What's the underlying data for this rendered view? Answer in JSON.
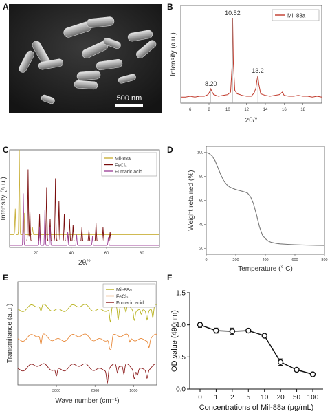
{
  "panels": {
    "A": {
      "letter": "A",
      "scale_bar": "500 nm"
    },
    "B": {
      "letter": "B"
    },
    "C": {
      "letter": "C"
    },
    "D": {
      "letter": "D"
    },
    "E": {
      "letter": "E"
    },
    "F": {
      "letter": "F"
    }
  },
  "chart_data": [
    {
      "panel": "B",
      "type": "line",
      "xlabel": "2θ/°",
      "ylabel": "Intensity (a.u.)",
      "x_ticks": [
        "6",
        "8",
        "10",
        "12",
        "14",
        "16",
        "18"
      ],
      "xlim": [
        5,
        20
      ],
      "legend": [
        "Mil-88a"
      ],
      "legend_position": "top-right",
      "peak_labels": [
        {
          "x": 8.2,
          "label": "8.20"
        },
        {
          "x": 10.52,
          "label": "10.52"
        },
        {
          "x": 13.2,
          "label": "13.2"
        }
      ],
      "series": [
        {
          "name": "Mil-88a",
          "color": "#c0392b",
          "x": [
            5.0,
            5.5,
            6.0,
            6.5,
            7.0,
            7.5,
            7.9,
            8.1,
            8.2,
            8.3,
            8.5,
            9.0,
            9.5,
            10.0,
            10.3,
            10.45,
            10.52,
            10.6,
            10.75,
            11.0,
            11.3,
            11.5,
            12.0,
            12.5,
            12.8,
            13.0,
            13.1,
            13.2,
            13.3,
            13.5,
            14.0,
            14.5,
            15.0,
            15.5,
            15.8,
            16.0,
            16.5,
            17.0,
            17.5,
            18.0,
            18.5,
            19.0,
            19.5,
            20.0
          ],
          "y": [
            4,
            4,
            5,
            4,
            5,
            5,
            7,
            11,
            14,
            11,
            7,
            5,
            6,
            7,
            10,
            40,
            100,
            45,
            12,
            8,
            7,
            6,
            5,
            5,
            9,
            15,
            24,
            30,
            20,
            8,
            6,
            5,
            6,
            7,
            10,
            6,
            5,
            5,
            6,
            5,
            5,
            4,
            5,
            4
          ]
        }
      ]
    },
    {
      "panel": "C",
      "type": "line",
      "xlabel": "2θ/°",
      "ylabel": "Intensity (a.u.)",
      "x_ticks": [
        "20",
        "40",
        "60",
        "80"
      ],
      "xlim": [
        5,
        90
      ],
      "legend": [
        "Mil-88a",
        "FeCl₃",
        "Fumaric acid"
      ],
      "legend_position": "top-right",
      "series": [
        {
          "name": "Mil-88a",
          "color": "#c9b03a",
          "baseline": 12,
          "peaks": [
            [
              8.2,
              30
            ],
            [
              10.5,
              95
            ],
            [
              13.2,
              25
            ],
            [
              18,
              8
            ]
          ]
        },
        {
          "name": "FeCl₃",
          "color": "#7a0d0d",
          "baseline": 5,
          "peaks": [
            [
              15.5,
              80
            ],
            [
              16.5,
              35
            ],
            [
              22,
              30
            ],
            [
              26,
              60
            ],
            [
              28,
              25
            ],
            [
              31,
              70
            ],
            [
              33,
              45
            ],
            [
              36,
              30
            ],
            [
              39,
              25
            ],
            [
              41,
              18
            ],
            [
              46,
              15
            ],
            [
              50,
              12
            ],
            [
              54,
              20
            ],
            [
              58,
              15
            ],
            [
              62,
              10
            ]
          ]
        },
        {
          "name": "Fumaric acid",
          "color": "#a0479b",
          "baseline": 0,
          "peaks": [
            [
              12.8,
              60
            ],
            [
              22,
              20
            ],
            [
              25,
              40
            ],
            [
              28,
              20
            ],
            [
              38,
              15
            ],
            [
              43,
              12
            ],
            [
              52,
              10
            ],
            [
              61,
              9
            ]
          ]
        }
      ]
    },
    {
      "panel": "D",
      "type": "line",
      "xlabel": "Temperature (° C)",
      "ylabel": "Weight retained (%)",
      "x_ticks": [
        "0",
        "200",
        "400",
        "600",
        "800"
      ],
      "y_ticks": [
        "100",
        "80",
        "60",
        "40",
        "20"
      ],
      "xlim": [
        0,
        800
      ],
      "ylim": [
        15,
        105
      ],
      "series": [
        {
          "name": "",
          "color": "#777777",
          "x": [
            0,
            20,
            40,
            60,
            80,
            100,
            120,
            140,
            160,
            180,
            200,
            230,
            260,
            280,
            300,
            320,
            340,
            360,
            380,
            400,
            420,
            440,
            460,
            480,
            500,
            550,
            600,
            650,
            700,
            750,
            800
          ],
          "y": [
            100,
            99,
            97,
            93,
            87,
            81,
            76,
            73,
            71,
            70,
            69,
            68,
            67,
            66,
            63,
            57,
            48,
            38,
            31,
            28,
            26,
            25,
            24.5,
            24,
            23.7,
            23.3,
            23,
            22.8,
            22.6,
            22.5,
            22.4
          ]
        }
      ]
    },
    {
      "panel": "E",
      "type": "line",
      "xlabel": "Wave number (cm⁻¹)",
      "ylabel": "Transmitance (a.u.)",
      "x_ticks": [
        "3000",
        "2000",
        "1000"
      ],
      "xlim": [
        4000,
        400
      ],
      "legend": [
        "Mil-88a",
        "FeCl₃",
        "Fumaric acid"
      ],
      "legend_position": "top-right",
      "series": [
        {
          "name": "Mil-88a",
          "color": "#b8b21e",
          "offset": 80,
          "dips": [
            [
              3400,
              6
            ],
            [
              1600,
              16
            ],
            [
              1400,
              14
            ],
            [
              1200,
              8
            ],
            [
              980,
              10
            ],
            [
              800,
              6
            ],
            [
              650,
              9
            ],
            [
              500,
              12
            ]
          ]
        },
        {
          "name": "FeCl₃",
          "color": "#e8893a",
          "offset": 48,
          "dips": [
            [
              3400,
              10
            ],
            [
              1620,
              10
            ],
            [
              1580,
              12
            ],
            [
              1100,
              6
            ],
            [
              600,
              8
            ]
          ]
        },
        {
          "name": "Fumaric acid",
          "color": "#8b1a1a",
          "offset": 16,
          "dips": [
            [
              3000,
              8
            ],
            [
              1680,
              14
            ],
            [
              1420,
              8
            ],
            [
              1250,
              10
            ],
            [
              980,
              9
            ],
            [
              900,
              6
            ],
            [
              650,
              8
            ]
          ]
        }
      ]
    },
    {
      "panel": "F",
      "type": "line",
      "xlabel": "Concentrations of Mil-88a (μg/mL)",
      "ylabel": "OD value (490nm)",
      "categories": [
        "0",
        "1",
        "2",
        "5",
        "10",
        "20",
        "50",
        "100"
      ],
      "y_ticks": [
        "0.0",
        "0.5",
        "1.0",
        "1.5"
      ],
      "ylim": [
        0,
        1.5
      ],
      "series": [
        {
          "name": "",
          "values": [
            1.0,
            0.91,
            0.9,
            0.91,
            0.83,
            0.42,
            0.3,
            0.23
          ],
          "errors": [
            0.04,
            0.04,
            0.05,
            0.03,
            0.02,
            0.05,
            0.02,
            0.02
          ]
        }
      ]
    }
  ]
}
